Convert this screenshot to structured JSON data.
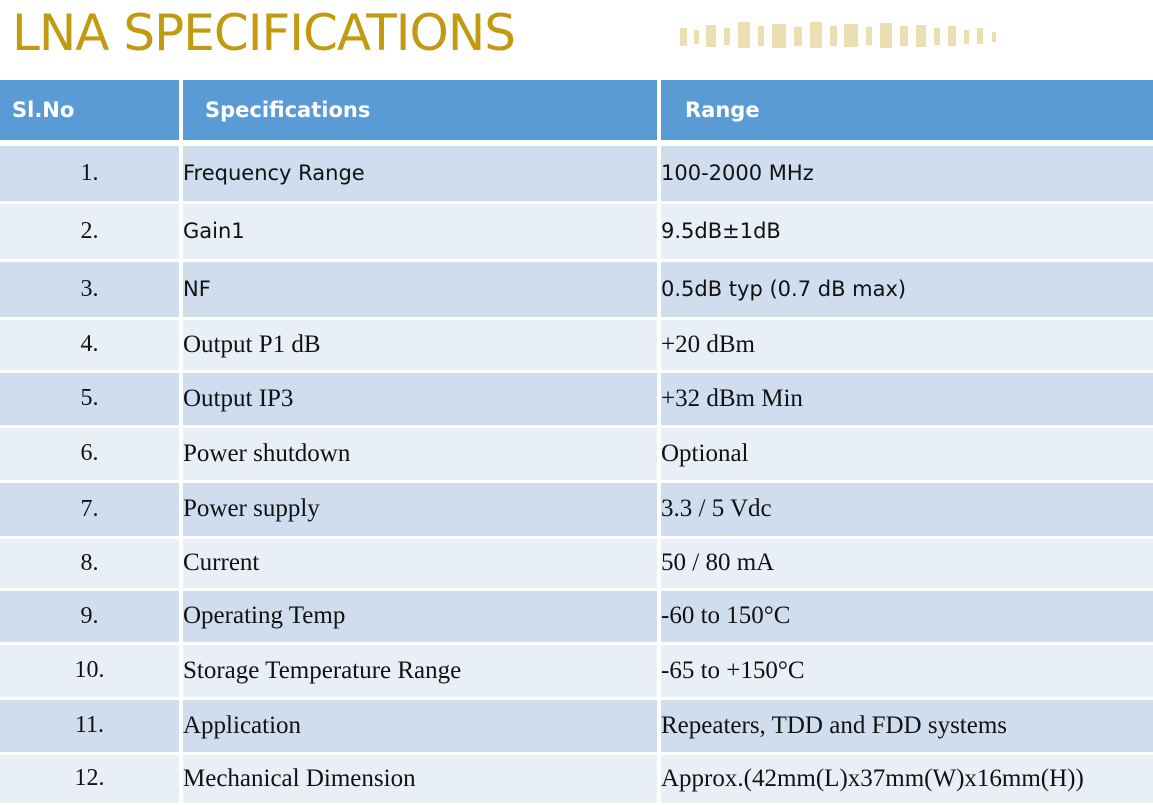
{
  "title": "LNA SPECIFICATIONS",
  "colors": {
    "title": "#C19A10",
    "header_bg": "#5B9BD5",
    "row_dark": "#CFDDEF",
    "row_light": "#E9EFF7"
  },
  "table": {
    "headers": {
      "sl_no": "Sl.No",
      "specifications": "Specifications",
      "range": "Range"
    },
    "rows": [
      {
        "no": "1.",
        "spec": "Frequency Range",
        "range": "100-2000 MHz"
      },
      {
        "no": "2.",
        "spec": "Gain1",
        "range": "9.5dB±1dB"
      },
      {
        "no": "3.",
        "spec": "NF",
        "range": "0.5dB typ (0.7 dB max)"
      },
      {
        "no": "4.",
        "spec": "Output P1 dB",
        "range": "+20 dBm"
      },
      {
        "no": "5.",
        "spec": "Output IP3",
        "range": "+32 dBm Min"
      },
      {
        "no": "6.",
        "spec": "Power shutdown",
        "range": "Optional"
      },
      {
        "no": "7.",
        "spec": "Power supply",
        "range": "3.3 / 5 Vdc"
      },
      {
        "no": "8.",
        "spec": "Current",
        "range": "50 / 80 mA"
      },
      {
        "no": "9.",
        "spec": "Operating Temp",
        "range": "-60 to 150°C"
      },
      {
        "no": "10.",
        "spec": "Storage Temperature Range",
        "range": "-65 to +150°C"
      },
      {
        "no": "11.",
        "spec": "Application",
        "range": "Repeaters, TDD and FDD systems"
      },
      {
        "no": "12.",
        "spec": "Mechanical Dimension",
        "range": "Approx.(42mm(L)x37mm(W)x16mm(H))"
      }
    ]
  }
}
